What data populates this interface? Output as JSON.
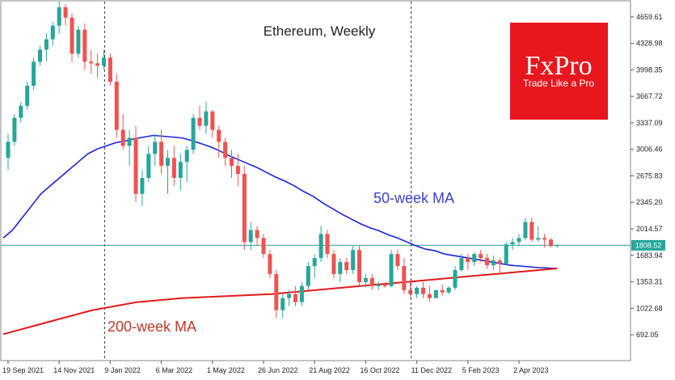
{
  "chart_data": {
    "type": "candlestick",
    "title": "Ethereum, Weekly",
    "symbol": "Ethereum",
    "timeframe": "Weekly",
    "y_axis_ticks": [
      "4659.61",
      "4328.98",
      "3998.35",
      "3667.72",
      "3337.09",
      "3006.46",
      "2675.83",
      "2345.20",
      "2014.57",
      "1683.94",
      "1353.31",
      "1022.68",
      "692.05"
    ],
    "ylim": [
      380,
      4850
    ],
    "x_axis_ticks": [
      "19 Sep 2021",
      "14 Nov 2021",
      "9 Jan 2022",
      "6 Mar 2022",
      "1 May 2022",
      "26 Jun 2022",
      "21 Aug 2022",
      "16 Oct 2022",
      "11 Dec 2022",
      "5 Feb 2023",
      "2 Apr 2023"
    ],
    "current_price": "1808.52",
    "current_price_value": 1808.52,
    "dashed_vertical_dates": [
      "9 Jan 2022",
      "11 Dec 2022"
    ],
    "colors": {
      "bull": "#26a69a",
      "bear": "#ef5350",
      "ma50": "#1a24d6",
      "ma200": "#e01b1b",
      "price_line": "#26a69a"
    },
    "candles": [
      [
        2900,
        3200,
        2750,
        3100
      ],
      [
        3100,
        3450,
        3050,
        3400
      ],
      [
        3400,
        3600,
        3350,
        3550
      ],
      [
        3550,
        3850,
        3500,
        3800
      ],
      [
        3800,
        4150,
        3750,
        4100
      ],
      [
        4100,
        4300,
        4050,
        4250
      ],
      [
        4250,
        4450,
        4100,
        4380
      ],
      [
        4380,
        4600,
        4300,
        4550
      ],
      [
        4550,
        4850,
        4450,
        4780
      ],
      [
        4780,
        4820,
        4550,
        4650
      ],
      [
        4650,
        4700,
        4100,
        4200
      ],
      [
        4200,
        4550,
        4150,
        4500
      ],
      [
        4500,
        4580,
        4000,
        4100
      ],
      [
        4100,
        4250,
        3950,
        4080
      ],
      [
        4080,
        4200,
        3900,
        4050
      ],
      [
        4050,
        4250,
        4000,
        4150
      ],
      [
        4150,
        4200,
        3800,
        3850
      ],
      [
        3850,
        3950,
        3150,
        3250
      ],
      [
        3250,
        3450,
        3000,
        3050
      ],
      [
        3050,
        3250,
        2800,
        3150
      ],
      [
        3150,
        3300,
        2350,
        2450
      ],
      [
        2450,
        2750,
        2300,
        2650
      ],
      [
        2650,
        3050,
        2600,
        2950
      ],
      [
        2950,
        3200,
        2800,
        3100
      ],
      [
        3100,
        3250,
        2700,
        2800
      ],
      [
        2800,
        3000,
        2450,
        2900
      ],
      [
        2900,
        3050,
        2550,
        2650
      ],
      [
        2650,
        2950,
        2500,
        2850
      ],
      [
        2850,
        3050,
        2600,
        3000
      ],
      [
        3000,
        3450,
        2950,
        3400
      ],
      [
        3400,
        3550,
        3250,
        3300
      ],
      [
        3300,
        3600,
        3200,
        3480
      ],
      [
        3480,
        3500,
        3150,
        3250
      ],
      [
        3250,
        3300,
        2900,
        3100
      ],
      [
        3100,
        3150,
        2800,
        2900
      ],
      [
        2900,
        3000,
        2650,
        2800
      ],
      [
        2800,
        2950,
        2550,
        2700
      ],
      [
        2700,
        2800,
        1750,
        1850
      ],
      [
        1850,
        2100,
        1750,
        2000
      ],
      [
        2000,
        2050,
        1800,
        1900
      ],
      [
        1900,
        1950,
        1650,
        1700
      ],
      [
        1700,
        1750,
        1400,
        1450
      ],
      [
        1450,
        1500,
        900,
        1000
      ],
      [
        1000,
        1200,
        900,
        1150
      ],
      [
        1150,
        1250,
        1050,
        1200
      ],
      [
        1200,
        1300,
        1050,
        1100
      ],
      [
        1100,
        1350,
        1050,
        1300
      ],
      [
        1300,
        1600,
        1250,
        1550
      ],
      [
        1550,
        1700,
        1400,
        1650
      ],
      [
        1650,
        2050,
        1600,
        1950
      ],
      [
        1950,
        2000,
        1650,
        1700
      ],
      [
        1700,
        1750,
        1400,
        1450
      ],
      [
        1450,
        1650,
        1350,
        1600
      ],
      [
        1600,
        1650,
        1450,
        1500
      ],
      [
        1500,
        1800,
        1450,
        1750
      ],
      [
        1750,
        1800,
        1300,
        1350
      ],
      [
        1350,
        1450,
        1280,
        1400
      ],
      [
        1400,
        1450,
        1250,
        1300
      ],
      [
        1300,
        1350,
        1250,
        1320
      ],
      [
        1320,
        1350,
        1280,
        1300
      ],
      [
        1300,
        1750,
        1280,
        1700
      ],
      [
        1700,
        1750,
        1500,
        1550
      ],
      [
        1550,
        1650,
        1200,
        1250
      ],
      [
        1250,
        1350,
        1150,
        1200
      ],
      [
        1200,
        1300,
        1150,
        1280
      ],
      [
        1280,
        1350,
        1150,
        1200
      ],
      [
        1200,
        1300,
        1100,
        1150
      ],
      [
        1150,
        1250,
        1150,
        1250
      ],
      [
        1250,
        1320,
        1180,
        1220
      ],
      [
        1220,
        1300,
        1200,
        1280
      ],
      [
        1280,
        1550,
        1250,
        1500
      ],
      [
        1500,
        1700,
        1480,
        1650
      ],
      [
        1650,
        1700,
        1500,
        1600
      ],
      [
        1600,
        1720,
        1550,
        1700
      ],
      [
        1700,
        1750,
        1600,
        1650
      ],
      [
        1650,
        1700,
        1520,
        1560
      ],
      [
        1560,
        1680,
        1500,
        1620
      ],
      [
        1620,
        1650,
        1450,
        1580
      ],
      [
        1580,
        1850,
        1560,
        1820
      ],
      [
        1820,
        1900,
        1750,
        1850
      ],
      [
        1850,
        1950,
        1800,
        1900
      ],
      [
        1900,
        2150,
        1870,
        2100
      ],
      [
        2100,
        2150,
        1850,
        1880
      ],
      [
        1880,
        2050,
        1850,
        1900
      ],
      [
        1900,
        1950,
        1780,
        1880
      ],
      [
        1880,
        1900,
        1780,
        1800
      ],
      [
        1800,
        1820,
        1780,
        1808.52
      ]
    ],
    "series": [
      {
        "name": "50-week MA",
        "values": [
          1900,
          2000,
          2150,
          2300,
          2450,
          2550,
          2650,
          2750,
          2850,
          2950,
          3010,
          3050,
          3090,
          3110,
          3140,
          3160,
          3180,
          3170,
          3160,
          3150,
          3120,
          3080,
          3040,
          2990,
          2930,
          2880,
          2830,
          2780,
          2720,
          2660,
          2610,
          2550,
          2480,
          2420,
          2340,
          2270,
          2200,
          2140,
          2080,
          2030,
          1990,
          1940,
          1900,
          1850,
          1800,
          1760,
          1740,
          1700,
          1680,
          1660,
          1640,
          1620,
          1600,
          1580,
          1560,
          1550,
          1540,
          1530,
          1525,
          1520
        ]
      },
      {
        "name": "200-week MA",
        "values": [
          700,
          730,
          760,
          790,
          820,
          850,
          880,
          910,
          940,
          970,
          1000,
          1020,
          1040,
          1060,
          1080,
          1100,
          1110,
          1120,
          1130,
          1140,
          1150,
          1155,
          1160,
          1165,
          1170,
          1175,
          1180,
          1185,
          1190,
          1195,
          1200,
          1210,
          1220,
          1230,
          1240,
          1250,
          1260,
          1270,
          1280,
          1290,
          1300,
          1310,
          1320,
          1330,
          1340,
          1350,
          1360,
          1370,
          1380,
          1390,
          1400,
          1410,
          1420,
          1430,
          1440,
          1450,
          1460,
          1470,
          1480,
          1490,
          1500,
          1510,
          1520
        ]
      }
    ]
  },
  "annotations": {
    "ma50": "50-week MA",
    "ma200": "200-week MA"
  },
  "logo": {
    "brand": "FxPro",
    "tagline": "Trade Like a Pro",
    "color": "#e8171e"
  }
}
